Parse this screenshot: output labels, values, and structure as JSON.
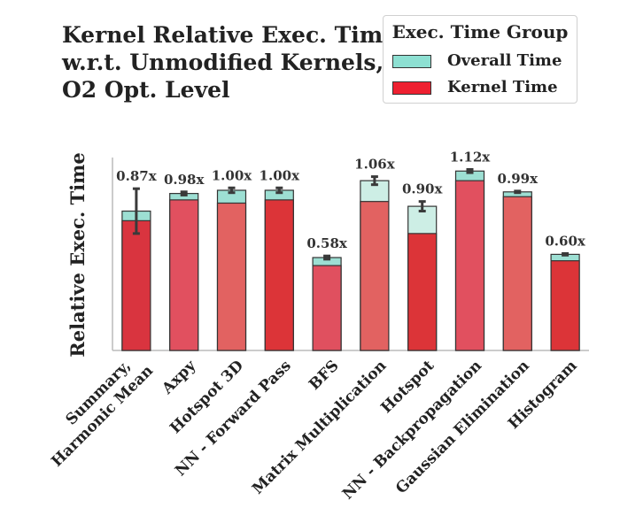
{
  "chart_data": {
    "type": "bar",
    "stacked": "overlay",
    "title_lines": [
      "Kernel Relative Exec. Time",
      "w.r.t. Unmodified Kernels,",
      "O2 Opt. Level"
    ],
    "xlabel": "",
    "ylabel": "Relative Exec. Time",
    "ylim": [
      0,
      1.17
    ],
    "grid": false,
    "legend": {
      "title": "Exec. Time Group",
      "placement": "top-right",
      "entries": [
        {
          "name": "Overall Time",
          "color": "#8de0d2"
        },
        {
          "name": "Kernel Time",
          "color": "#ee2030"
        }
      ]
    },
    "categories": [
      "Summary,\nHarmonic Mean",
      "Axpy",
      "Hotspot 3D",
      "NN - Forward Pass",
      "BFS",
      "Matrix Multiplication",
      "Hotspot",
      "NN - Backpropagation",
      "Gaussian Elimination",
      "Histogram"
    ],
    "series": [
      {
        "name": "Overall Time",
        "values": [
          0.87,
          0.98,
          1.0,
          1.0,
          0.58,
          1.06,
          0.9,
          1.12,
          0.99,
          0.6
        ],
        "error": [
          0.28,
          0.02,
          0.03,
          0.03,
          0.02,
          0.05,
          0.06,
          0.02,
          0.01,
          0.01
        ]
      },
      {
        "name": "Kernel Time",
        "values": [
          0.81,
          0.94,
          0.92,
          0.94,
          0.53,
          0.93,
          0.73,
          1.06,
          0.96,
          0.56
        ]
      }
    ],
    "bar_labels": [
      "0.87x",
      "0.98x",
      "1.00x",
      "1.00x",
      "0.58x",
      "1.06x",
      "0.90x",
      "1.12x",
      "0.99x",
      "0.60x"
    ],
    "kernel_bar_colors": [
      "#d9343f",
      "#e1505f",
      "#e26261",
      "#dc3438",
      "#e0505f",
      "#e26261",
      "#dc3438",
      "#e1505f",
      "#e26261",
      "#dc3438"
    ],
    "overall_bar_color": "#cdeee5",
    "overall_bar_color_strong": "#9ddfd3"
  }
}
